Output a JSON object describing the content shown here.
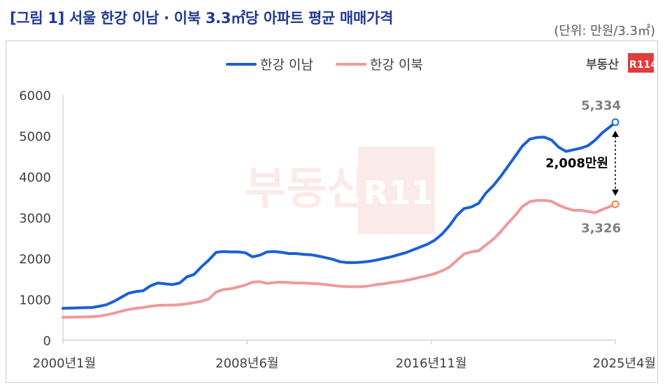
{
  "header": {
    "title": "[그림 1] 서울 한강 이남 · 이북 3.3㎡당 아파트 평균 매매가격",
    "unit": "(단위: 만원/3.3㎡)"
  },
  "brand": {
    "logo_text": "부동산",
    "logo_badge": "R114",
    "watermark_text": "부동산",
    "watermark_badge": "R114"
  },
  "colors": {
    "south": "#1a5fd6",
    "north": "#f0999a",
    "title": "#1f3a93",
    "axis_text": "#404040",
    "brand_red": "#e03c3c"
  },
  "chart_data": {
    "type": "line",
    "title": "",
    "xlabel": "",
    "ylabel": "",
    "ylim": [
      0,
      6000
    ],
    "yticks": [
      0,
      1000,
      2000,
      3000,
      4000,
      5000,
      6000
    ],
    "x_tick_labels": [
      "2000년1월",
      "2008년6월",
      "2016년11월",
      "2025년4월"
    ],
    "x_ticks_months": [
      0,
      101,
      202,
      303
    ],
    "x_max_months": 303,
    "legend_position": "top",
    "grid": false,
    "series": [
      {
        "name": "한강 이남",
        "color": "#1a5fd6",
        "points": [
          [
            0,
            780
          ],
          [
            8,
            790
          ],
          [
            16,
            800
          ],
          [
            20,
            830
          ],
          [
            24,
            870
          ],
          [
            28,
            950
          ],
          [
            32,
            1050
          ],
          [
            36,
            1150
          ],
          [
            40,
            1190
          ],
          [
            44,
            1210
          ],
          [
            48,
            1330
          ],
          [
            52,
            1400
          ],
          [
            56,
            1380
          ],
          [
            60,
            1360
          ],
          [
            64,
            1400
          ],
          [
            68,
            1550
          ],
          [
            72,
            1610
          ],
          [
            76,
            1800
          ],
          [
            80,
            1960
          ],
          [
            84,
            2150
          ],
          [
            88,
            2170
          ],
          [
            92,
            2160
          ],
          [
            96,
            2160
          ],
          [
            100,
            2140
          ],
          [
            104,
            2040
          ],
          [
            108,
            2080
          ],
          [
            112,
            2160
          ],
          [
            116,
            2170
          ],
          [
            120,
            2150
          ],
          [
            124,
            2120
          ],
          [
            128,
            2120
          ],
          [
            132,
            2100
          ],
          [
            136,
            2090
          ],
          [
            140,
            2060
          ],
          [
            144,
            2020
          ],
          [
            148,
            1980
          ],
          [
            152,
            1920
          ],
          [
            156,
            1900
          ],
          [
            160,
            1900
          ],
          [
            164,
            1910
          ],
          [
            168,
            1930
          ],
          [
            172,
            1960
          ],
          [
            176,
            2000
          ],
          [
            180,
            2040
          ],
          [
            184,
            2090
          ],
          [
            188,
            2140
          ],
          [
            192,
            2210
          ],
          [
            196,
            2280
          ],
          [
            200,
            2350
          ],
          [
            204,
            2450
          ],
          [
            208,
            2600
          ],
          [
            212,
            2800
          ],
          [
            216,
            3050
          ],
          [
            220,
            3220
          ],
          [
            224,
            3260
          ],
          [
            228,
            3350
          ],
          [
            232,
            3600
          ],
          [
            236,
            3780
          ],
          [
            240,
            4000
          ],
          [
            244,
            4250
          ],
          [
            248,
            4500
          ],
          [
            252,
            4750
          ],
          [
            256,
            4920
          ],
          [
            260,
            4960
          ],
          [
            264,
            4970
          ],
          [
            268,
            4900
          ],
          [
            272,
            4720
          ],
          [
            276,
            4620
          ],
          [
            280,
            4660
          ],
          [
            284,
            4700
          ],
          [
            288,
            4760
          ],
          [
            292,
            4900
          ],
          [
            296,
            5080
          ],
          [
            300,
            5220
          ],
          [
            303,
            5334
          ]
        ]
      },
      {
        "name": "한강 이북",
        "color": "#f0999a",
        "points": [
          [
            0,
            560
          ],
          [
            8,
            565
          ],
          [
            16,
            575
          ],
          [
            20,
            590
          ],
          [
            24,
            620
          ],
          [
            28,
            660
          ],
          [
            32,
            710
          ],
          [
            36,
            750
          ],
          [
            40,
            780
          ],
          [
            44,
            800
          ],
          [
            48,
            830
          ],
          [
            52,
            850
          ],
          [
            56,
            860
          ],
          [
            60,
            860
          ],
          [
            64,
            870
          ],
          [
            68,
            890
          ],
          [
            72,
            920
          ],
          [
            76,
            950
          ],
          [
            80,
            1010
          ],
          [
            84,
            1180
          ],
          [
            88,
            1240
          ],
          [
            92,
            1260
          ],
          [
            96,
            1300
          ],
          [
            100,
            1350
          ],
          [
            104,
            1420
          ],
          [
            108,
            1430
          ],
          [
            112,
            1390
          ],
          [
            116,
            1410
          ],
          [
            120,
            1420
          ],
          [
            124,
            1410
          ],
          [
            128,
            1400
          ],
          [
            132,
            1400
          ],
          [
            136,
            1390
          ],
          [
            140,
            1380
          ],
          [
            144,
            1360
          ],
          [
            148,
            1340
          ],
          [
            152,
            1320
          ],
          [
            156,
            1310
          ],
          [
            160,
            1310
          ],
          [
            164,
            1310
          ],
          [
            168,
            1330
          ],
          [
            172,
            1360
          ],
          [
            176,
            1380
          ],
          [
            180,
            1410
          ],
          [
            184,
            1430
          ],
          [
            188,
            1460
          ],
          [
            192,
            1500
          ],
          [
            196,
            1540
          ],
          [
            200,
            1580
          ],
          [
            204,
            1630
          ],
          [
            208,
            1700
          ],
          [
            212,
            1790
          ],
          [
            216,
            1950
          ],
          [
            220,
            2110
          ],
          [
            224,
            2160
          ],
          [
            228,
            2190
          ],
          [
            232,
            2330
          ],
          [
            236,
            2470
          ],
          [
            240,
            2650
          ],
          [
            244,
            2860
          ],
          [
            248,
            3050
          ],
          [
            252,
            3270
          ],
          [
            256,
            3390
          ],
          [
            260,
            3420
          ],
          [
            264,
            3420
          ],
          [
            268,
            3400
          ],
          [
            272,
            3300
          ],
          [
            276,
            3230
          ],
          [
            280,
            3180
          ],
          [
            284,
            3180
          ],
          [
            288,
            3150
          ],
          [
            292,
            3120
          ],
          [
            296,
            3200
          ],
          [
            300,
            3270
          ],
          [
            303,
            3326
          ]
        ]
      }
    ],
    "annotations": {
      "end_south_label": "5,334",
      "end_north_label": "3,326",
      "gap_label": "2,008만원"
    }
  }
}
